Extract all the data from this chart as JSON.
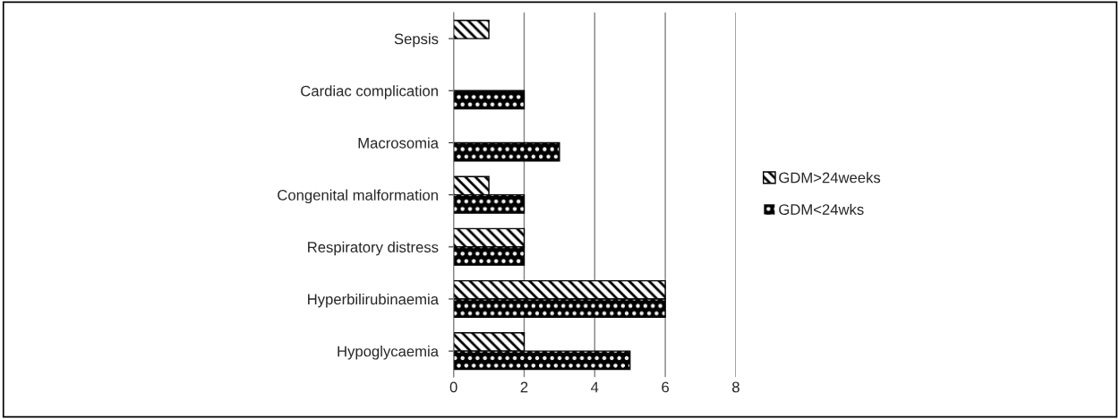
{
  "chart_data": {
    "type": "bar",
    "orientation": "horizontal",
    "categories": [
      "Sepsis",
      "Cardiac complication",
      "Macrosomia",
      "Congenital malformation",
      "Respiratory distress",
      "Hyperbilirubinaemia",
      "Hypoglycaemia"
    ],
    "series": [
      {
        "name": "GDM>24weeks",
        "color": "#ffffff",
        "values": [
          1,
          null,
          null,
          1,
          2,
          6,
          2
        ]
      },
      {
        "name": "GDM<24wks",
        "color": "#000000",
        "values": [
          null,
          2,
          3,
          2,
          2,
          6,
          5
        ]
      }
    ],
    "xlim": [
      0,
      8
    ],
    "xticks": [
      0,
      2,
      4,
      6,
      8
    ],
    "grid": "x",
    "legend": "right"
  }
}
